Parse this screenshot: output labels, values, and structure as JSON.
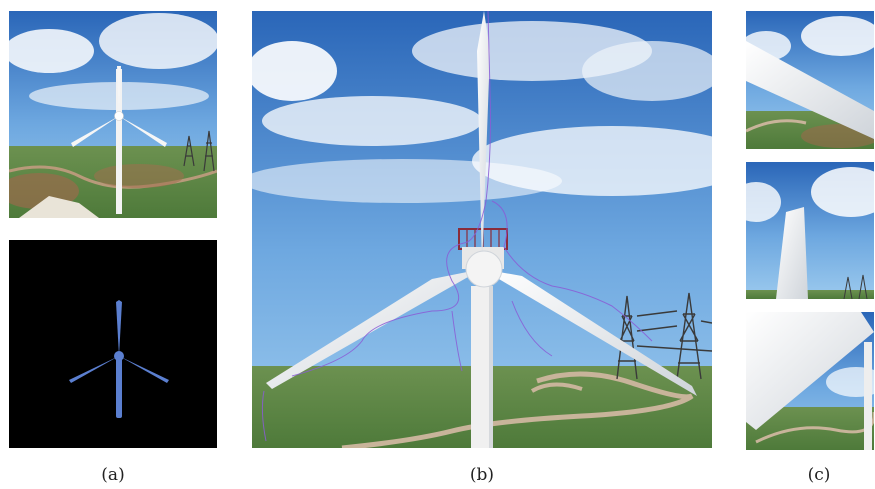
{
  "figure": {
    "captions": {
      "a": "(a)",
      "b": "(b)",
      "c": "(c)"
    },
    "panels": {
      "a_top": {
        "content": "wind-turbine-render"
      },
      "a_bottom": {
        "content": "turbine-segmentation-mask",
        "mask_color": "#5b7fd0",
        "background": "#000000"
      },
      "b": {
        "content": "wind-turbine-closeup-with-trajectory",
        "trajectory_color": "#8a5cd6"
      },
      "c_top": {
        "content": "blade-closeup-1"
      },
      "c_middle": {
        "content": "blade-closeup-2"
      },
      "c_bottom": {
        "content": "blade-closeup-3"
      }
    },
    "colors": {
      "sky_top": "#2d6fc0",
      "sky_bottom": "#8fc2ea",
      "grass": "#5f8a45",
      "path": "#c8b49a",
      "blade": "#f2f2f2"
    }
  }
}
